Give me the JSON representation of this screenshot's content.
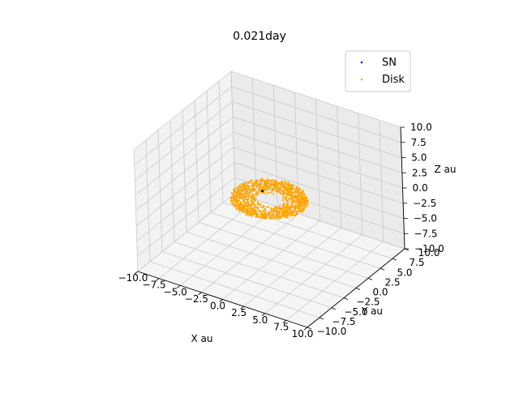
{
  "chart_data": {
    "type": "scatter",
    "projection": "3d",
    "title": "0.021day",
    "xlabel": "X au",
    "ylabel": "Y au",
    "zlabel": "Z au",
    "xlim": [
      -10,
      10
    ],
    "ylim": [
      -10,
      10
    ],
    "zlim": [
      -10,
      10
    ],
    "ticks": [
      -10,
      -7.5,
      -5,
      -2.5,
      0,
      2.5,
      5,
      7.5,
      10
    ],
    "tick_labels": [
      "−10.0",
      "−7.5",
      "−5.0",
      "−2.5",
      "0.0",
      "2.5",
      "5.0",
      "7.5",
      "10.0"
    ],
    "grid": true,
    "legend_position": "top-right",
    "series": [
      {
        "name": "SN",
        "color": "#0000ff",
        "marker": "point",
        "points": [
          [
            -1.5,
            1.2,
            -0.1
          ]
        ]
      },
      {
        "name": "Disk",
        "color": "#ffa500",
        "marker": "point",
        "distribution": "ring",
        "inner_radius": 1.3,
        "outer_radius": 4.0,
        "center": [
          0,
          0,
          0
        ],
        "z_spread": 0.25,
        "count": 1200
      }
    ]
  }
}
